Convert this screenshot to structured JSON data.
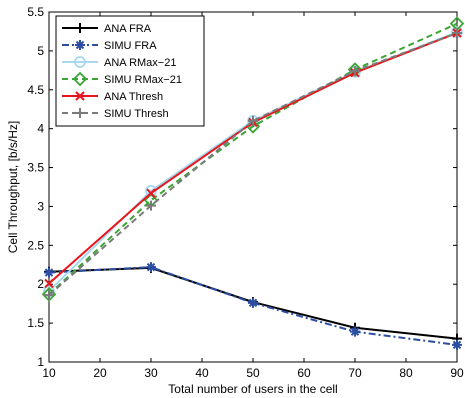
{
  "chart_data": {
    "type": "line",
    "xlabel": "Total number of users in the cell",
    "ylabel": "Cell Throughput, [b/s/Hz]",
    "xlim": [
      10,
      90
    ],
    "ylim": [
      1,
      5.5
    ],
    "xticks": [
      "10",
      "20",
      "30",
      "40",
      "50",
      "60",
      "70",
      "80",
      "90"
    ],
    "yticks": [
      "1",
      "1.5",
      "2",
      "2.5",
      "3",
      "3.5",
      "4",
      "4.5",
      "5",
      "5.5"
    ],
    "grid": false,
    "legend_position": "top-left",
    "x": [
      10,
      30,
      50,
      70,
      90
    ],
    "series": [
      {
        "name": "ANA FRA",
        "values": [
          2.16,
          2.21,
          1.77,
          1.44,
          1.3
        ],
        "color": "#000000",
        "dash": "solid",
        "marker": "plus"
      },
      {
        "name": "SIMU FRA",
        "values": [
          2.15,
          2.22,
          1.76,
          1.39,
          1.22
        ],
        "color": "#2b4ea3",
        "dash": "dashdot",
        "marker": "asterisk"
      },
      {
        "name": "ANA RMax−21",
        "values": [
          1.91,
          3.2,
          4.1,
          4.73,
          5.24
        ],
        "color": "#a6d8f0",
        "dash": "solid",
        "marker": "circle"
      },
      {
        "name": "SIMU RMax−21",
        "values": [
          1.87,
          3.08,
          4.03,
          4.76,
          5.35
        ],
        "color": "#3aa535",
        "dash": "dashed",
        "marker": "diamond"
      },
      {
        "name": "ANA Thresh",
        "values": [
          2.01,
          3.17,
          4.08,
          4.72,
          5.23
        ],
        "color": "#e8161c",
        "dash": "solid",
        "marker": "x"
      },
      {
        "name": "SIMU Thresh",
        "values": [
          1.86,
          3.01,
          4.1,
          4.74,
          5.23
        ],
        "color": "#7a7a7a",
        "dash": "dashed",
        "marker": "plus"
      }
    ]
  }
}
